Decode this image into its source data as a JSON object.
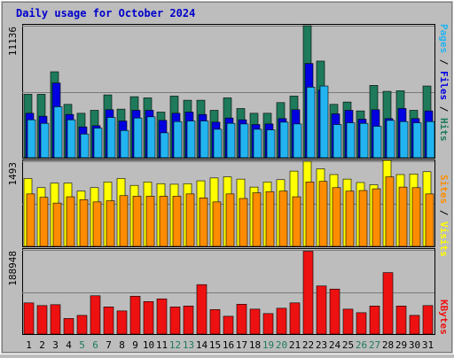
{
  "title": "Daily usage for October 2024",
  "colors": {
    "background": "#bdbdbd",
    "panel": "#bdbdbd",
    "title": "#0000cc",
    "hits": "#1e7a5a",
    "files": "#0000e0",
    "pages": "#22b4f0",
    "visits": "#ffff00",
    "sites": "#ff8c00",
    "kbytes": "#ee1111",
    "weekend_day": "#1e7a5a",
    "weekday": "#000000"
  },
  "legend": {
    "top": {
      "pages": "Pages",
      "files": "Files",
      "hits": "Hits",
      "sep": " / "
    },
    "middle": {
      "sites": "Sites",
      "visits": "Visits",
      "sep": " / "
    },
    "bottom": {
      "kbytes": "KBytes"
    }
  },
  "chart_data": {
    "type": "bar",
    "categories": [
      "1",
      "2",
      "3",
      "4",
      "5",
      "6",
      "7",
      "8",
      "9",
      "10",
      "11",
      "12",
      "13",
      "14",
      "15",
      "16",
      "17",
      "18",
      "19",
      "20",
      "21",
      "22",
      "23",
      "24",
      "25",
      "26",
      "27",
      "28",
      "29",
      "30",
      "31"
    ],
    "weekend_days": [
      "5",
      "6",
      "12",
      "13",
      "19",
      "20",
      "26",
      "27"
    ],
    "panels": [
      {
        "name": "hits-files-pages",
        "ymax_label": "11136",
        "ymax": 11136,
        "gridlines": [
          5568
        ],
        "series": [
          {
            "name": "Hits",
            "values": [
              5350,
              5350,
              7250,
              4500,
              3750,
              4000,
              5300,
              4100,
              5150,
              5050,
              3850,
              5200,
              4850,
              4850,
              4000,
              5050,
              4150,
              3750,
              3750,
              4650,
              5200,
              11136,
              8150,
              4500,
              4700,
              3950,
              6100,
              5600,
              5650,
              4000,
              6050
            ]
          },
          {
            "name": "Files",
            "values": [
              3750,
              3500,
              6300,
              3650,
              2600,
              2700,
              4050,
              3100,
              4000,
              4000,
              3150,
              3750,
              3850,
              3650,
              3000,
              3350,
              3200,
              2800,
              2850,
              3300,
              4050,
              7950,
              5700,
              3700,
              4000,
              3250,
              4050,
              3300,
              4150,
              3300,
              3950
            ]
          },
          {
            "name": "Pages",
            "values": [
              3200,
              2900,
              4300,
              3200,
              2000,
              2500,
              3400,
              2300,
              3350,
              3450,
              2100,
              3050,
              3100,
              3100,
              2400,
              2900,
              2850,
              2400,
              2350,
              3000,
              2850,
              5950,
              6050,
              2800,
              2950,
              2900,
              2650,
              3150,
              3050,
              2950,
              3050
            ]
          }
        ]
      },
      {
        "name": "visits-sites",
        "ymax_label": "1493",
        "ymax": 1493,
        "gridlines": [
          746
        ],
        "series": [
          {
            "name": "Visits",
            "values": [
              1190,
              1030,
              1110,
              1110,
              970,
              1030,
              1130,
              1190,
              1070,
              1130,
              1100,
              1090,
              1100,
              1150,
              1200,
              1220,
              1180,
              1040,
              1130,
              1170,
              1320,
              1490,
              1360,
              1260,
              1180,
              1120,
              1080,
              1510,
              1260,
              1270,
              1310
            ]
          },
          {
            "name": "Sites",
            "values": [
              920,
              860,
              760,
              870,
              820,
              780,
              800,
              890,
              880,
              880,
              880,
              880,
              920,
              850,
              780,
              920,
              840,
              940,
              960,
              970,
              870,
              1130,
              1140,
              1030,
              970,
              980,
              1010,
              1220,
              1040,
              1030,
              920
            ]
          }
        ]
      },
      {
        "name": "kbytes",
        "ymax_label": "188948",
        "ymax": 188948,
        "gridlines": [
          94474
        ],
        "series": [
          {
            "name": "KBytes",
            "values": [
              70000,
              64000,
              66000,
              35000,
              42000,
              86000,
              61000,
              52000,
              85000,
              73000,
              79000,
              61000,
              63000,
              111000,
              55000,
              40000,
              67000,
              56000,
              46000,
              58000,
              70000,
              186000,
              108000,
              101000,
              56000,
              48000,
              63000,
              138000,
              63000,
              42000,
              64000
            ]
          }
        ]
      }
    ]
  }
}
